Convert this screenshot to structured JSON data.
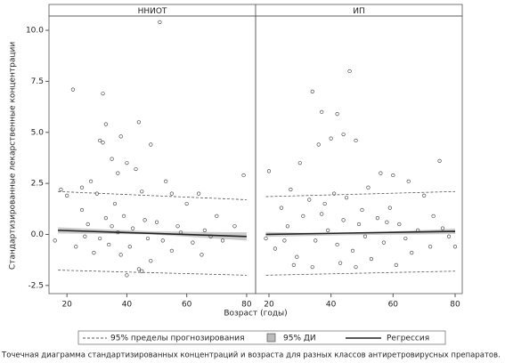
{
  "y_label": "Стандартизированные лекарственные концентрации",
  "x_label": "Возраст (годы)",
  "legend": [
    "95% пределы прогнозирования",
    "95% ДИ",
    "Регрессия"
  ],
  "caption": "Точечная диаграмма стандартизированных концентраций и возраста для разных классов антиретровирусных препаратов.",
  "chart_data": [
    {
      "type": "scatter",
      "title": "ННИОТ",
      "xlim": [
        14,
        83
      ],
      "ylim": [
        -2.9,
        10.7
      ],
      "xticks": [
        20,
        40,
        60,
        80
      ],
      "yticks": [
        -2.5,
        {
          "value": 0,
          "label": "0.0"
        },
        2.5,
        {
          "value": 5,
          "label": "5.0"
        },
        7.5,
        {
          "value": 10,
          "label": "10.0"
        }
      ],
      "x": [
        22,
        51,
        32,
        33,
        44,
        38,
        31,
        32,
        48,
        35,
        40,
        43,
        37,
        28,
        25,
        30,
        45,
        55,
        64,
        79,
        53,
        60,
        70,
        18,
        20,
        16,
        25,
        27,
        33,
        36,
        42,
        47,
        50,
        58,
        62,
        66,
        72,
        76,
        34,
        38,
        44,
        45,
        48,
        29,
        23,
        55,
        65,
        40,
        31,
        37,
        41,
        52,
        57,
        39,
        26,
        35,
        46,
        68
      ],
      "values": [
        7.1,
        10.4,
        6.9,
        5.4,
        5.5,
        4.8,
        4.6,
        4.5,
        4.4,
        3.7,
        3.5,
        3.2,
        3.0,
        2.6,
        2.3,
        2.0,
        2.1,
        2.0,
        2.0,
        2.9,
        2.6,
        1.5,
        0.9,
        2.2,
        1.9,
        -0.3,
        1.2,
        0.5,
        0.8,
        1.5,
        0.3,
        -0.2,
        0.6,
        0.1,
        -0.4,
        0.2,
        -0.3,
        0.4,
        -0.5,
        -1.0,
        -1.7,
        -1.8,
        -1.3,
        -0.9,
        -0.6,
        -0.8,
        -1.0,
        -2.0,
        -0.2,
        0.1,
        -0.6,
        -0.3,
        0.4,
        0.9,
        -0.1,
        0.4,
        0.7,
        -0.1
      ],
      "pi_upper": {
        "x": [
          17,
          80
        ],
        "values": [
          2.1,
          1.7
        ]
      },
      "pi_lower": {
        "x": [
          17,
          80
        ],
        "values": [
          -1.75,
          -2.0
        ]
      },
      "regression": {
        "x": [
          17,
          80
        ],
        "values": [
          0.2,
          -0.1
        ]
      },
      "ci": {
        "x": [
          17,
          48,
          80
        ],
        "lower": [
          0.05,
          0.0,
          -0.3
        ],
        "upper": [
          0.35,
          0.15,
          0.1
        ]
      }
    },
    {
      "type": "scatter",
      "title": "ИП",
      "xlim": [
        15.7,
        82.3
      ],
      "ylim": [
        -2.9,
        10.7
      ],
      "xticks": [
        20,
        40,
        60,
        80
      ],
      "x": [
        46,
        34,
        37,
        42,
        44,
        48,
        40,
        36,
        20,
        75,
        30,
        56,
        60,
        65,
        52,
        27,
        70,
        24,
        33,
        38,
        41,
        45,
        50,
        55,
        62,
        68,
        78,
        80,
        19,
        22,
        26,
        29,
        31,
        35,
        39,
        43,
        47,
        49,
        53,
        57,
        61,
        66,
        72,
        76,
        28,
        34,
        42,
        51,
        58,
        64,
        37,
        44,
        25,
        48,
        59,
        73
      ],
      "values": [
        8.0,
        7.0,
        6.0,
        5.9,
        4.9,
        4.6,
        4.7,
        4.4,
        3.1,
        3.6,
        3.5,
        3.0,
        2.9,
        2.6,
        2.3,
        2.2,
        1.9,
        1.3,
        1.7,
        1.5,
        2.0,
        1.8,
        1.2,
        0.8,
        0.5,
        0.2,
        -0.1,
        -0.6,
        -0.2,
        -0.7,
        0.4,
        -1.1,
        0.9,
        -0.3,
        0.2,
        -1.4,
        -0.8,
        0.5,
        -1.2,
        -0.4,
        -1.5,
        -0.9,
        -0.6,
        0.3,
        -1.5,
        -1.6,
        -0.5,
        -0.1,
        0.6,
        -0.2,
        1.0,
        0.7,
        -0.3,
        -1.6,
        1.3,
        0.9
      ],
      "pi_upper": {
        "x": [
          19,
          80
        ],
        "values": [
          1.85,
          2.1
        ]
      },
      "pi_lower": {
        "x": [
          19,
          80
        ],
        "values": [
          -2.0,
          -1.8
        ]
      },
      "regression": {
        "x": [
          19,
          80
        ],
        "values": [
          0.0,
          0.15
        ]
      },
      "ci": {
        "x": [
          19,
          45,
          80
        ],
        "lower": [
          -0.12,
          -0.04,
          0.02
        ],
        "upper": [
          0.12,
          0.04,
          0.28
        ]
      }
    }
  ]
}
